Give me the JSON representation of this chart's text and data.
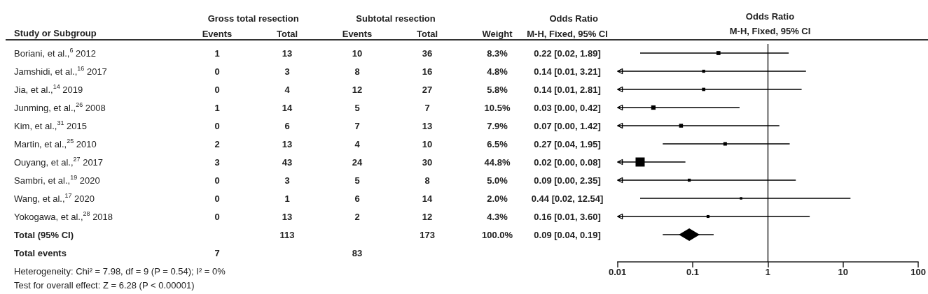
{
  "chart_data": [
    {
      "type": "other",
      "ylabel": "Study or Subgroup",
      "categories": [
        "Events",
        "Total",
        "Events",
        "Total",
        "Weight",
        "M-H, Fixed, 95% CI"
      ],
      "y_categories": [
        "Boriani, et al.,$^{6}$ 2012",
        "Jamshidi, et al.,$^{16}$ 2017",
        "Jia, et al.,$^{14}$ 2019",
        "Junming, et al.,$^{26}$ 2008",
        "Kim, et al.,$^{31}$ 2015",
        "Martin, et al.,$^{25}$ 2010",
        "Ouyang, et al.,$^{27}$ 2017",
        "Sambri, et al.,$^{19}$ 2020",
        "Wang, et al.,$^{17}$ 2020",
        "Yokogawa, et al.,$^{28}$ 2018",
        "Total (95% CI)",
        "Total events"
      ],
      "cell_labels": [
        [
          "1",
          "13",
          "10",
          "36",
          "8.3%",
          "0.22 [0.02, 1.89]"
        ],
        [
          "0",
          "3",
          "8",
          "16",
          "4.8%",
          "0.14 [0.01, 3.21]"
        ],
        [
          "0",
          "4",
          "12",
          "27",
          "5.8%",
          "0.14 [0.01, 2.81]"
        ],
        [
          "1",
          "14",
          "5",
          "7",
          "10.5%",
          "0.03 [0.00, 0.42]"
        ],
        [
          "0",
          "6",
          "7",
          "13",
          "7.9%",
          "0.07 [0.00, 1.42]"
        ],
        [
          "2",
          "13",
          "4",
          "10",
          "6.5%",
          "0.27 [0.04, 1.95]"
        ],
        [
          "3",
          "43",
          "24",
          "30",
          "44.8%",
          "0.02 [0.00, 0.08]"
        ],
        [
          "0",
          "3",
          "5",
          "8",
          "5.0%",
          "0.09 [0.00, 2.35]"
        ],
        [
          "0",
          "1",
          "6",
          "14",
          "2.0%",
          "0.44 [0.02, 12.54]"
        ],
        [
          "0",
          "13",
          "2",
          "12",
          "4.3%",
          "0.16 [0.01, 3.60]"
        ],
        [
          null,
          "113",
          null,
          "173",
          "100.0%",
          "0.09 [0.04, 0.19]"
        ],
        [
          "7",
          null,
          "83",
          null,
          null,
          null
        ]
      ],
      "annotations": [
        "Gross total resection",
        "Subtotal resection",
        "Odds Ratio",
        "Heterogeneity: Chi² = 7.98, df = 9 (P = 0.54); I² = 0%",
        "Test for overall effect: Z = 6.28 (P < 0.00001)"
      ]
    },
    {
      "type": "scatter",
      "title": "Odds Ratio",
      "subtitle": "M-H, Fixed, 95% CI",
      "orientation": "horizontal",
      "categories": [
        null,
        null,
        null,
        null,
        null,
        null,
        null,
        null,
        null,
        null,
        null,
        null
      ],
      "series": [
        {
          "color": "#000000",
          "marker": "square",
          "values": [
            0.22,
            0.14,
            0.14,
            0.03,
            0.07,
            0.27,
            0.02,
            0.09,
            0.44,
            0.16,
            null,
            null
          ],
          "errors": [
            [
              0.02,
              1.89
            ],
            [
              0.01,
              3.21
            ],
            [
              0.01,
              2.81
            ],
            [
              0.01,
              0.42
            ],
            [
              0.01,
              1.42
            ],
            [
              0.04,
              1.95
            ],
            [
              0.01,
              0.08
            ],
            [
              0.01,
              2.35
            ],
            [
              0.02,
              12.54
            ],
            [
              0.01,
              3.6
            ],
            null,
            null
          ],
          "sizes": [
            0.19,
            0.11,
            0.13,
            0.23,
            0.18,
            0.15,
            1,
            0.11,
            0.04,
            0.1,
            null,
            null
          ]
        },
        {
          "color": "#000000",
          "marker": "diamond",
          "values": [
            null,
            null,
            null,
            null,
            null,
            null,
            null,
            null,
            null,
            null,
            0.09,
            null
          ],
          "errors": [
            null,
            null,
            null,
            null,
            null,
            null,
            null,
            null,
            null,
            null,
            [
              0.04,
              0.19
            ],
            null
          ]
        }
      ],
      "log": "x",
      "xlim": [
        0.01,
        100
      ],
      "xticks": [
        0.01,
        0.1,
        1,
        10,
        100
      ],
      "tick_labels": "x",
      "ref_lines": [
        {
          "axis": "x",
          "value": 1,
          "color": "#000000"
        }
      ]
    }
  ]
}
